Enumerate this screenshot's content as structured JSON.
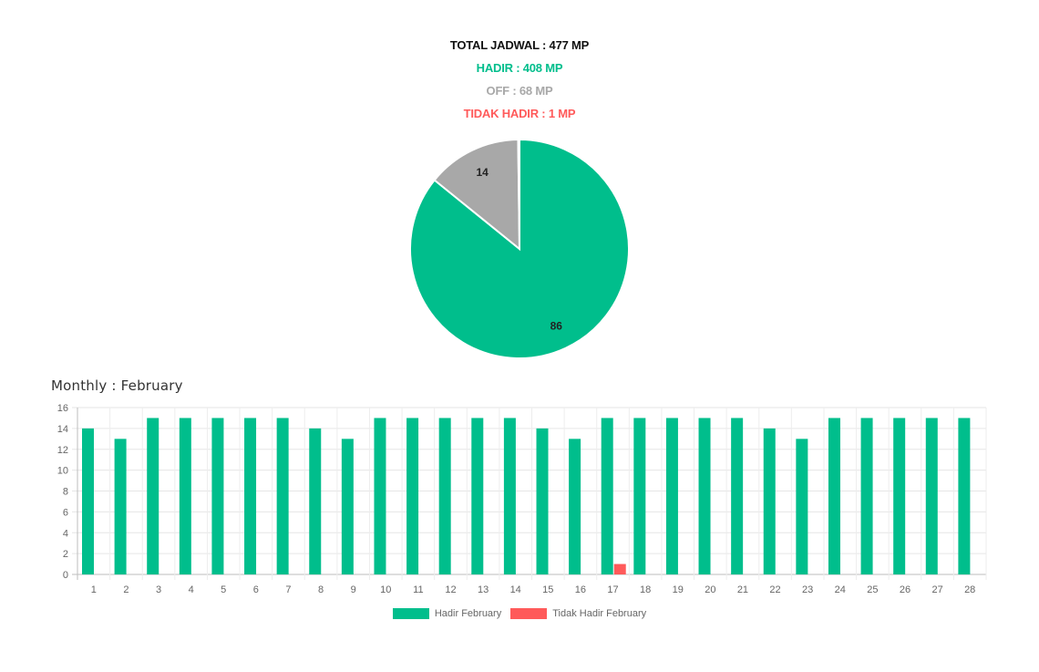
{
  "summary": {
    "total": "TOTAL JADWAL : 477 MP",
    "hadir": "HADIR : 408 MP",
    "off": "OFF : 68 MP",
    "tidak_hadir": "TIDAK HADIR : 1 MP"
  },
  "colors": {
    "hadir": "#00be8c",
    "off": "#a8a8a8",
    "tidak_hadir": "#ff5a5a",
    "total": "#111111"
  },
  "monthly_title": "Monthly : February",
  "chart_data": [
    {
      "type": "pie",
      "slices": [
        {
          "label": "HADIR",
          "value": 86,
          "display": "86",
          "color": "#00be8c"
        },
        {
          "label": "OFF",
          "value": 14,
          "display": "14",
          "color": "#a8a8a8"
        },
        {
          "label": "TIDAK HADIR",
          "value": 0.2,
          "display": "",
          "color": "#ff5a5a"
        }
      ]
    },
    {
      "type": "bar",
      "categories": [
        "1",
        "2",
        "3",
        "4",
        "5",
        "6",
        "7",
        "8",
        "9",
        "10",
        "11",
        "12",
        "13",
        "14",
        "15",
        "16",
        "17",
        "18",
        "19",
        "20",
        "21",
        "22",
        "23",
        "24",
        "25",
        "26",
        "27",
        "28"
      ],
      "series": [
        {
          "name": "Hadir February",
          "color": "#00be8c",
          "values": [
            14,
            13,
            15,
            15,
            15,
            15,
            15,
            14,
            13,
            15,
            15,
            15,
            15,
            15,
            14,
            13,
            15,
            15,
            15,
            15,
            15,
            14,
            13,
            15,
            15,
            15,
            15,
            15
          ]
        },
        {
          "name": "Tidak Hadir February",
          "color": "#ff5a5a",
          "values": [
            0,
            0,
            0,
            0,
            0,
            0,
            0,
            0,
            0,
            0,
            0,
            0,
            0,
            0,
            0,
            0,
            1,
            0,
            0,
            0,
            0,
            0,
            0,
            0,
            0,
            0,
            0,
            0
          ]
        }
      ],
      "yticks": [
        "0",
        "2",
        "4",
        "6",
        "8",
        "10",
        "12",
        "14",
        "16"
      ],
      "ylim": [
        0,
        16
      ],
      "grid": true,
      "legend": "bottom"
    }
  ]
}
